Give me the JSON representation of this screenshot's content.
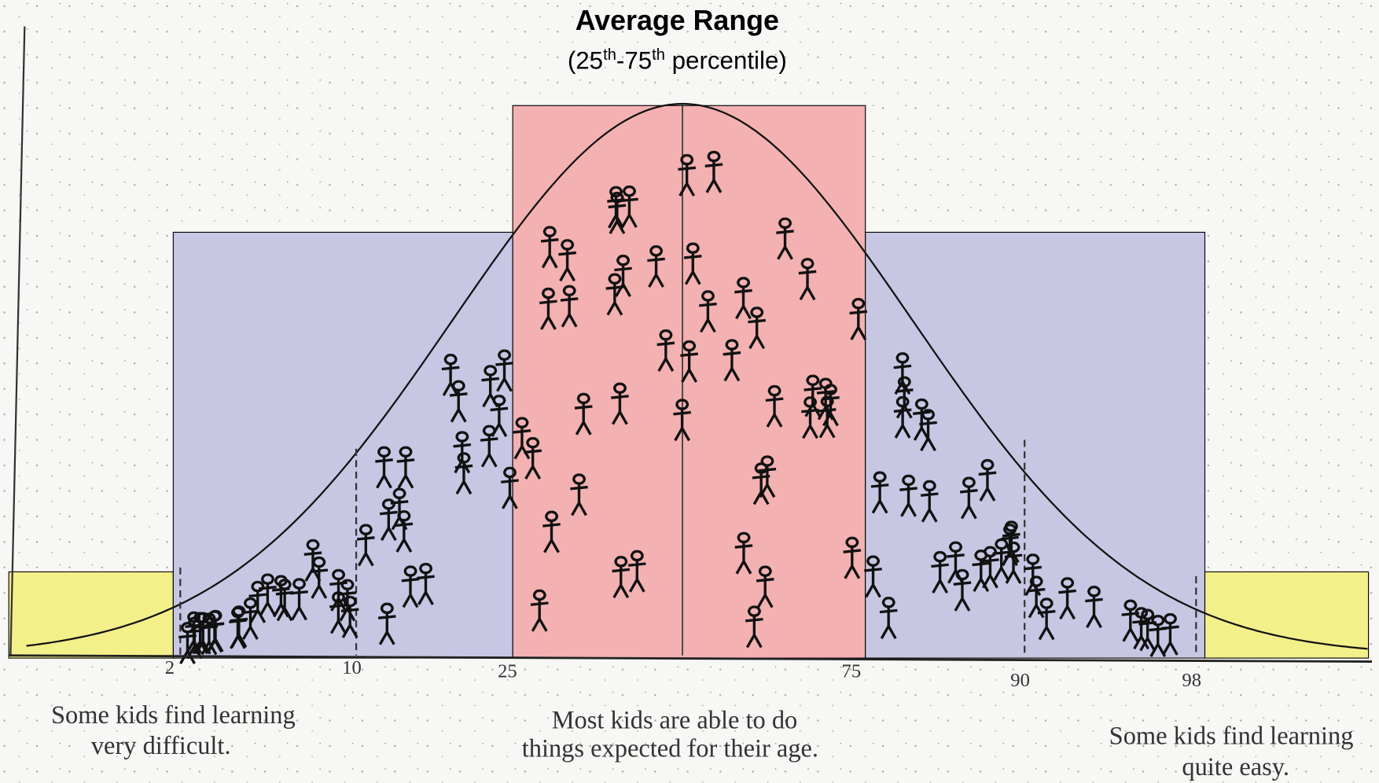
{
  "title": "Average Range",
  "subtitle": {
    "parts": [
      "(25",
      "th",
      "-75",
      "th",
      " percentile)"
    ]
  },
  "percentiles": [
    "2",
    "10",
    "25",
    "75",
    "90",
    "98"
  ],
  "captions": {
    "left": [
      "Some kids find learning",
      "very difficult."
    ],
    "center": [
      "Most kids are able to do",
      "things expected for their age."
    ],
    "right": [
      "Some kids find learning",
      "quite easy."
    ]
  }
}
